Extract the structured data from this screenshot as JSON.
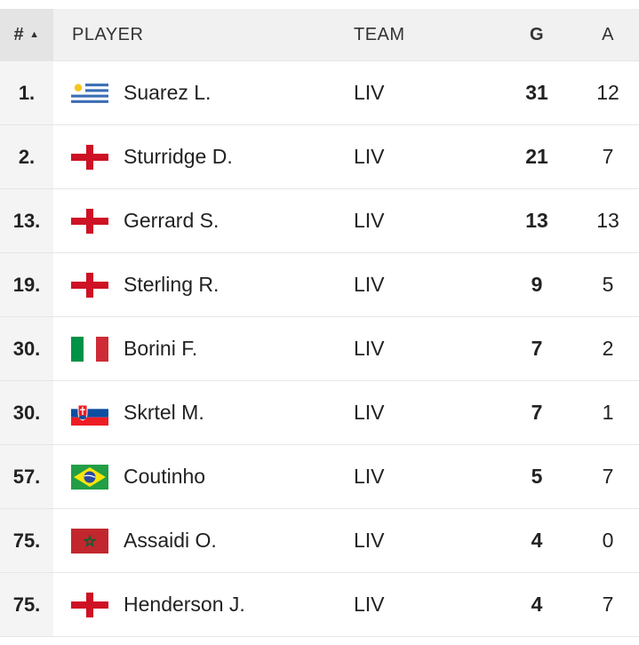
{
  "header": {
    "rank": "#",
    "sort_arrow": "▲",
    "player": "PLAYER",
    "team": "TEAM",
    "goals": "G",
    "assists": "A"
  },
  "rows": [
    {
      "rank": "1.",
      "flag": "uruguay-flag-icon",
      "name": "Suarez L.",
      "team": "LIV",
      "goals": "31",
      "assists": "12"
    },
    {
      "rank": "2.",
      "flag": "england-flag-icon",
      "name": "Sturridge D.",
      "team": "LIV",
      "goals": "21",
      "assists": "7"
    },
    {
      "rank": "13.",
      "flag": "england-flag-icon",
      "name": "Gerrard S.",
      "team": "LIV",
      "goals": "13",
      "assists": "13"
    },
    {
      "rank": "19.",
      "flag": "england-flag-icon",
      "name": "Sterling R.",
      "team": "LIV",
      "goals": "9",
      "assists": "5"
    },
    {
      "rank": "30.",
      "flag": "italy-flag-icon",
      "name": "Borini F.",
      "team": "LIV",
      "goals": "7",
      "assists": "2"
    },
    {
      "rank": "30.",
      "flag": "slovakia-flag-icon",
      "name": "Skrtel M.",
      "team": "LIV",
      "goals": "7",
      "assists": "1"
    },
    {
      "rank": "57.",
      "flag": "brazil-flag-icon",
      "name": "Coutinho",
      "team": "LIV",
      "goals": "5",
      "assists": "7"
    },
    {
      "rank": "75.",
      "flag": "morocco-flag-icon",
      "name": "Assaidi O.",
      "team": "LIV",
      "goals": "4",
      "assists": "0"
    },
    {
      "rank": "75.",
      "flag": "england-flag-icon",
      "name": "Henderson J.",
      "team": "LIV",
      "goals": "4",
      "assists": "7"
    }
  ]
}
